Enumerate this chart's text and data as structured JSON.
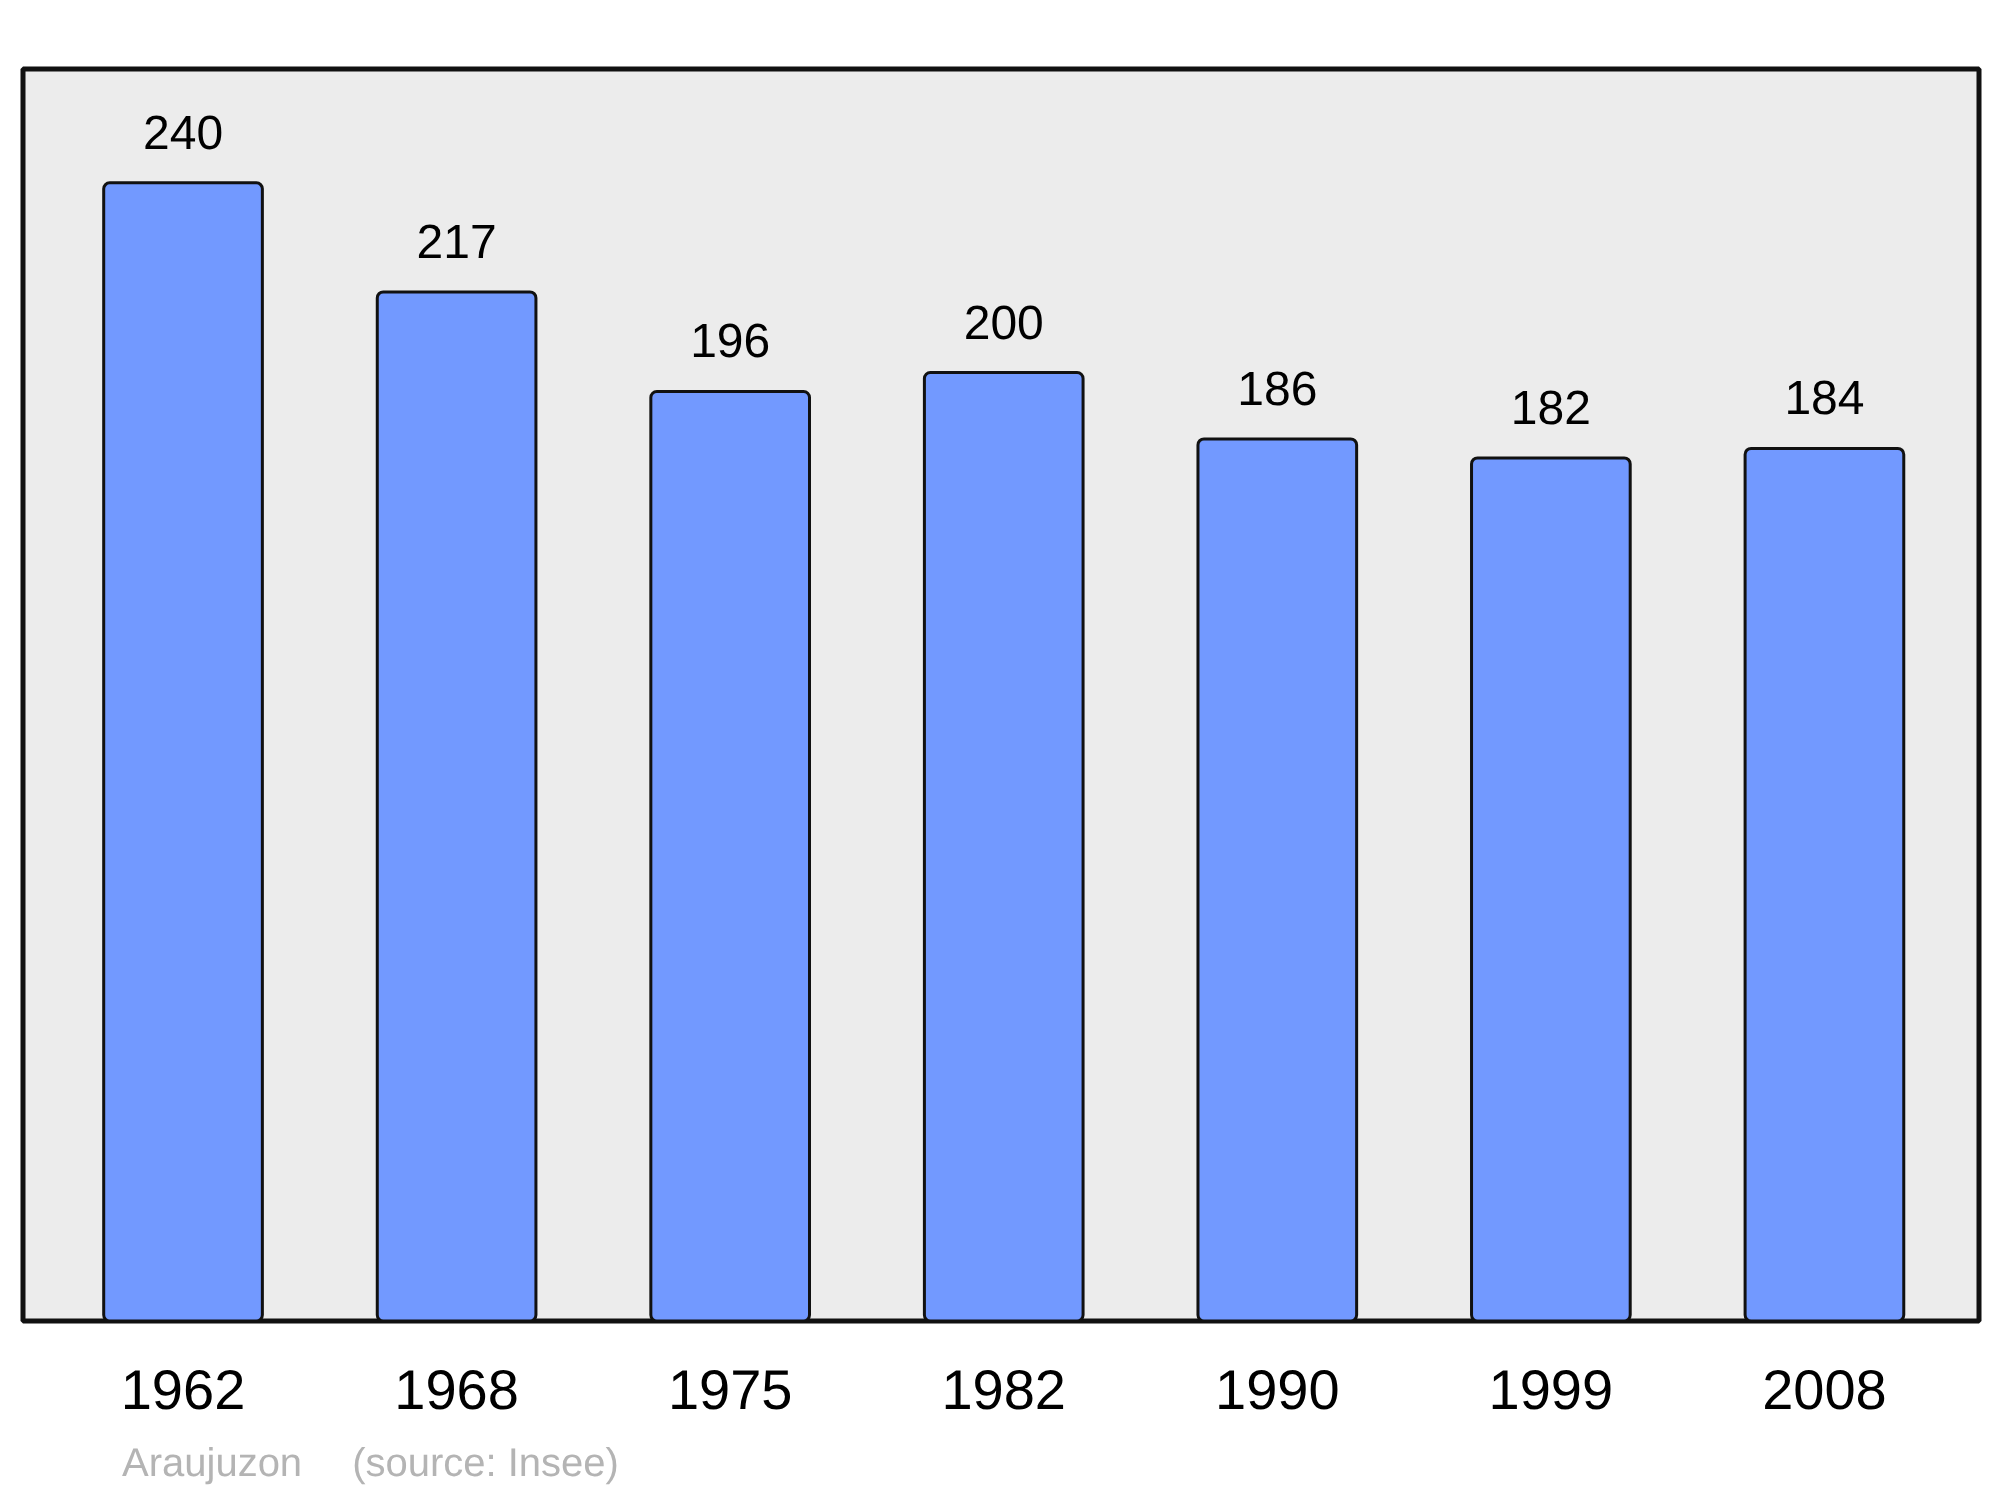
{
  "chart_data": {
    "type": "bar",
    "categories": [
      "1962",
      "1968",
      "1975",
      "1982",
      "1990",
      "1999",
      "2008"
    ],
    "values": [
      240,
      217,
      196,
      200,
      186,
      182,
      184
    ],
    "color": "#7299ff",
    "data_labels": true,
    "tick_labels": "x",
    "annotations": [
      "Araujuzon",
      "(source: Insee)"
    ]
  }
}
